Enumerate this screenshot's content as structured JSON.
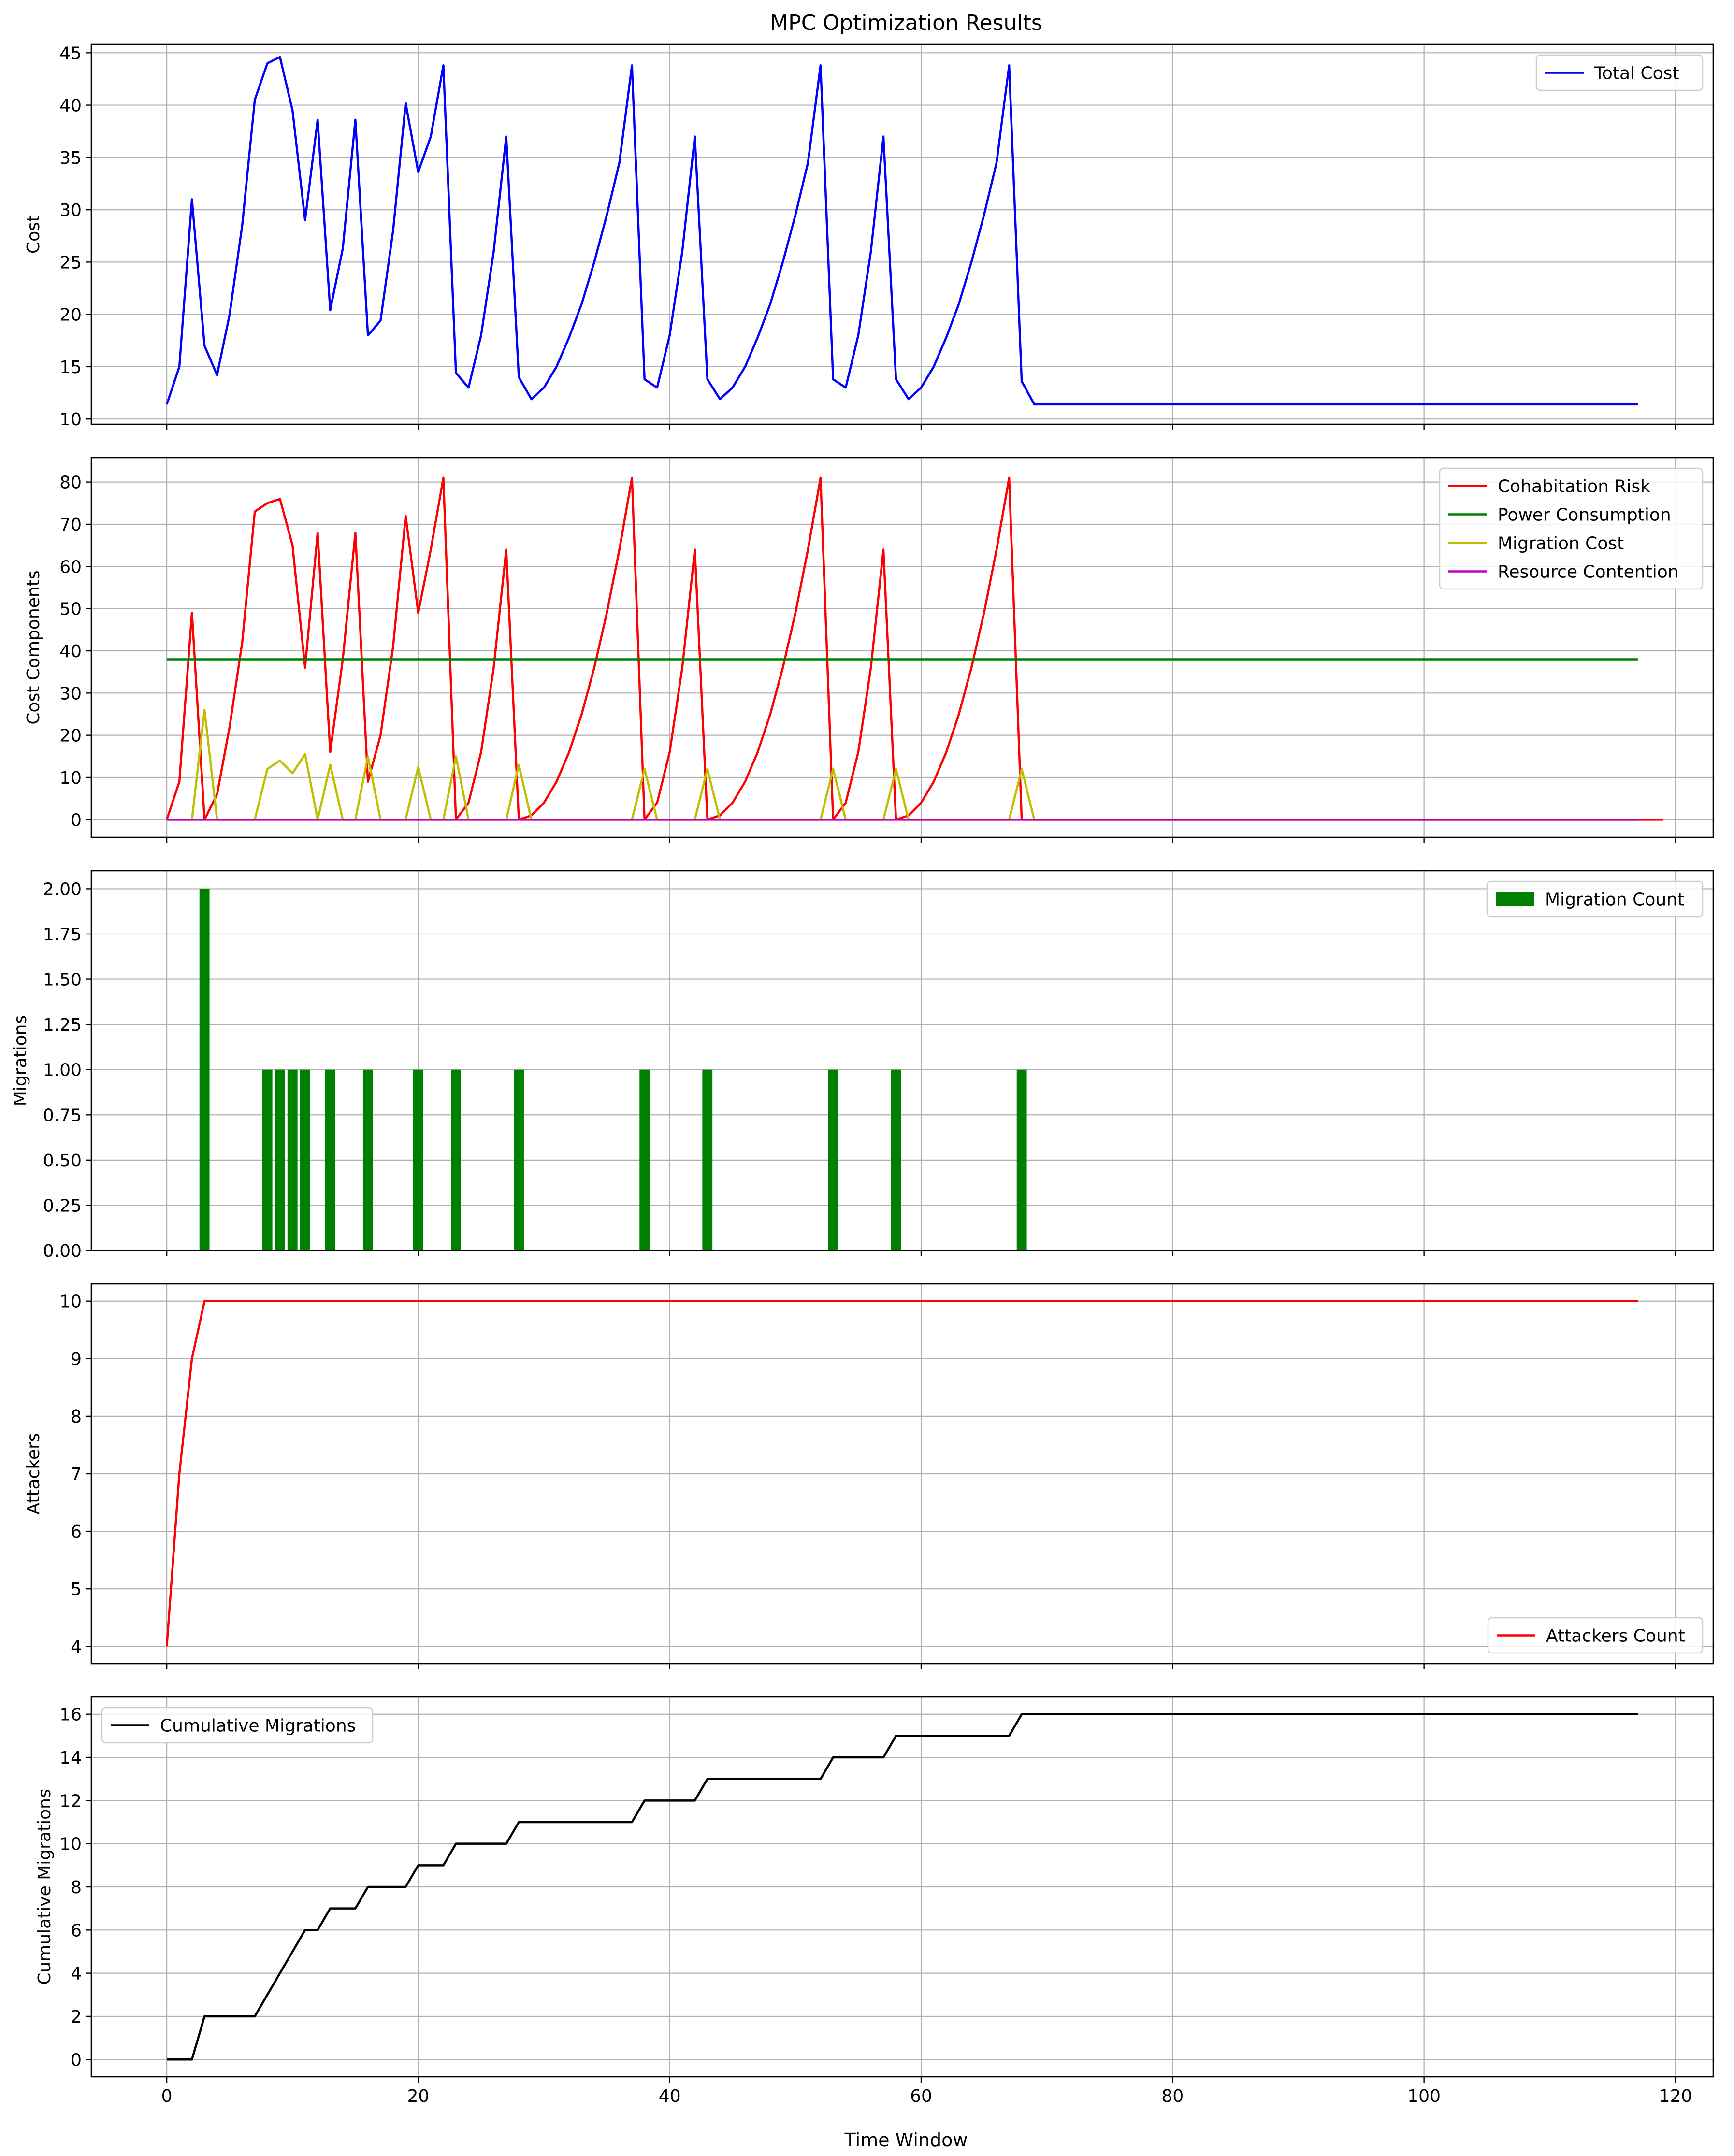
{
  "figure_title": "MPC Optimization Results",
  "x_axis_label": "Time Window",
  "chart_data": [
    {
      "type": "line",
      "ylabel": "Cost",
      "xlim": [
        -6,
        123
      ],
      "ylim": [
        9.5,
        45.8
      ],
      "xticks": [
        0,
        20,
        40,
        60,
        80,
        100,
        120
      ],
      "yticks": [
        10,
        15,
        20,
        25,
        30,
        35,
        40,
        45
      ],
      "ytick_labels": [
        "10",
        "15",
        "20",
        "25",
        "30",
        "35",
        "40",
        "45"
      ],
      "grid": true,
      "legend_position": "upper right",
      "series": [
        {
          "name": "Total Cost",
          "color": "#0000ff",
          "x_start": 0,
          "values": [
            11.4,
            15.0,
            31.0,
            17.0,
            14.2,
            20.0,
            28.5,
            40.5,
            44.0,
            44.6,
            39.5,
            29.0,
            38.6,
            20.4,
            26.3,
            38.6,
            18.0,
            19.4,
            28.0,
            40.2,
            33.6,
            37.0,
            43.8,
            14.4,
            13.0,
            18.0,
            26.0,
            37.0,
            14.0,
            11.9,
            13.0,
            15.0,
            17.8,
            21.0,
            25.0,
            29.5,
            34.5,
            43.8,
            13.8,
            13.0,
            18.0,
            26.0,
            37.0,
            13.8,
            11.9,
            13.0,
            15.0,
            17.8,
            21.0,
            25.0,
            29.5,
            34.5,
            43.8,
            13.8,
            13.0,
            18.0,
            26.0,
            37.0,
            13.8,
            11.9,
            13.0,
            15.0,
            17.8,
            21.0,
            25.0,
            29.5,
            34.5,
            43.8,
            13.6,
            11.4,
            11.4,
            11.4,
            11.4,
            11.4,
            11.4,
            11.4,
            11.4,
            11.4,
            11.4,
            11.4,
            11.4,
            11.4,
            11.4,
            11.4,
            11.4,
            11.4,
            11.4,
            11.4,
            11.4,
            11.4,
            11.4,
            11.4,
            11.4,
            11.4,
            11.4,
            11.4,
            11.4,
            11.4,
            11.4,
            11.4,
            11.4,
            11.4,
            11.4,
            11.4,
            11.4,
            11.4,
            11.4,
            11.4,
            11.4,
            11.4,
            11.4,
            11.4,
            11.4,
            11.4,
            11.4,
            11.4,
            11.4,
            11.4
          ]
        }
      ]
    },
    {
      "type": "line",
      "ylabel": "Cost Components",
      "xlim": [
        -6,
        123
      ],
      "ylim": [
        -4.2,
        85.8
      ],
      "xticks": [
        0,
        20,
        40,
        60,
        80,
        100,
        120
      ],
      "yticks": [
        0,
        10,
        20,
        30,
        40,
        50,
        60,
        70,
        80
      ],
      "ytick_labels": [
        "0",
        "10",
        "20",
        "30",
        "40",
        "50",
        "60",
        "70",
        "80"
      ],
      "grid": true,
      "legend_position": "upper right",
      "series": [
        {
          "name": "Cohabitation Risk",
          "color": "#ff0000",
          "x_start": 0,
          "values": [
            0,
            9,
            49,
            0,
            6,
            22,
            42,
            73,
            75,
            76,
            65,
            36,
            68,
            16,
            38,
            68,
            9,
            20,
            41,
            72,
            49,
            64,
            81,
            0,
            4,
            16,
            36,
            64,
            0,
            1,
            4,
            9,
            16,
            25,
            36,
            49,
            64,
            81,
            0,
            4,
            16,
            36,
            64,
            0,
            1,
            4,
            9,
            16,
            25,
            36,
            49,
            64,
            81,
            0,
            4,
            16,
            36,
            64,
            0,
            1,
            4,
            9,
            16,
            25,
            36,
            49,
            64,
            81,
            0,
            0,
            0,
            0,
            0,
            0,
            0,
            0,
            0,
            0,
            0,
            0,
            0,
            0,
            0,
            0,
            0,
            0,
            0,
            0,
            0,
            0,
            0,
            0,
            0,
            0,
            0,
            0,
            0,
            0,
            0,
            0,
            0,
            0,
            0,
            0,
            0,
            0,
            0,
            0,
            0,
            0,
            0,
            0,
            0,
            0,
            0,
            0,
            0,
            0,
            0,
            0
          ]
        },
        {
          "name": "Power Consumption",
          "color": "#008000",
          "x_start": 0,
          "values": [
            38,
            38,
            38,
            38,
            38,
            38,
            38,
            38,
            38,
            38,
            38,
            38,
            38,
            38,
            38,
            38,
            38,
            38,
            38,
            38,
            38,
            38,
            38,
            38,
            38,
            38,
            38,
            38,
            38,
            38,
            38,
            38,
            38,
            38,
            38,
            38,
            38,
            38,
            38,
            38,
            38,
            38,
            38,
            38,
            38,
            38,
            38,
            38,
            38,
            38,
            38,
            38,
            38,
            38,
            38,
            38,
            38,
            38,
            38,
            38,
            38,
            38,
            38,
            38,
            38,
            38,
            38,
            38,
            38,
            38,
            38,
            38,
            38,
            38,
            38,
            38,
            38,
            38,
            38,
            38,
            38,
            38,
            38,
            38,
            38,
            38,
            38,
            38,
            38,
            38,
            38,
            38,
            38,
            38,
            38,
            38,
            38,
            38,
            38,
            38,
            38,
            38,
            38,
            38,
            38,
            38,
            38,
            38,
            38,
            38,
            38,
            38,
            38,
            38,
            38,
            38,
            38,
            38
          ]
        },
        {
          "name": "Migration Cost",
          "color": "#bfbf00",
          "x_start": 0,
          "values": [
            0,
            0,
            0,
            26,
            0,
            0,
            0,
            0,
            12,
            14,
            11,
            15.5,
            0,
            13,
            0,
            0,
            15,
            0,
            0,
            0,
            12.5,
            0,
            0,
            15,
            0,
            0,
            0,
            0,
            13,
            0,
            0,
            0,
            0,
            0,
            0,
            0,
            0,
            0,
            12,
            0,
            0,
            0,
            0,
            12,
            0,
            0,
            0,
            0,
            0,
            0,
            0,
            0,
            0,
            12,
            0,
            0,
            0,
            0,
            12,
            0,
            0,
            0,
            0,
            0,
            0,
            0,
            0,
            0,
            12,
            0,
            0,
            0,
            0,
            0,
            0,
            0,
            0,
            0,
            0,
            0,
            0,
            0,
            0,
            0,
            0,
            0,
            0,
            0,
            0,
            0,
            0,
            0,
            0,
            0,
            0,
            0,
            0,
            0,
            0,
            0,
            0,
            0,
            0,
            0,
            0,
            0,
            0,
            0,
            0,
            0,
            0,
            0,
            0,
            0,
            0,
            0,
            0,
            0
          ]
        },
        {
          "name": "Resource Contention",
          "color": "#bf00bf",
          "x_start": 0,
          "values": [
            0,
            0,
            0,
            0,
            0,
            0,
            0,
            0,
            0,
            0,
            0,
            0,
            0,
            0,
            0,
            0,
            0,
            0,
            0,
            0,
            0,
            0,
            0,
            0,
            0,
            0,
            0,
            0,
            0,
            0,
            0,
            0,
            0,
            0,
            0,
            0,
            0,
            0,
            0,
            0,
            0,
            0,
            0,
            0,
            0,
            0,
            0,
            0,
            0,
            0,
            0,
            0,
            0,
            0,
            0,
            0,
            0,
            0,
            0,
            0,
            0,
            0,
            0,
            0,
            0,
            0,
            0,
            0,
            0,
            0,
            0,
            0,
            0,
            0,
            0,
            0,
            0,
            0,
            0,
            0,
            0,
            0,
            0,
            0,
            0,
            0,
            0,
            0,
            0,
            0,
            0,
            0,
            0,
            0,
            0,
            0,
            0,
            0,
            0,
            0,
            0,
            0,
            0,
            0,
            0,
            0,
            0,
            0,
            0,
            0,
            0,
            0,
            0,
            0,
            0,
            0,
            0,
            0
          ]
        }
      ]
    },
    {
      "type": "bar",
      "ylabel": "Migrations",
      "xlim": [
        -6,
        123
      ],
      "ylim": [
        0,
        2.1
      ],
      "xticks": [
        0,
        20,
        40,
        60,
        80,
        100,
        120
      ],
      "yticks": [
        0,
        0.25,
        0.5,
        0.75,
        1.0,
        1.25,
        1.5,
        1.75,
        2.0
      ],
      "ytick_labels": [
        "0.00",
        "0.25",
        "0.50",
        "0.75",
        "1.00",
        "1.25",
        "1.50",
        "1.75",
        "2.00"
      ],
      "grid": true,
      "legend_position": "upper right",
      "bar_width": 0.8,
      "series": [
        {
          "name": "Migration Count",
          "color": "#008000",
          "x": [
            3,
            8,
            9,
            10,
            11,
            13,
            16,
            20,
            23,
            28,
            38,
            43,
            53,
            58,
            68
          ],
          "values": [
            2,
            1,
            1,
            1,
            1,
            1,
            1,
            1,
            1,
            1,
            1,
            1,
            1,
            1,
            1
          ]
        }
      ]
    },
    {
      "type": "line",
      "ylabel": "Attackers",
      "xlim": [
        -6,
        123
      ],
      "ylim": [
        3.7,
        10.3
      ],
      "xticks": [
        0,
        20,
        40,
        60,
        80,
        100,
        120
      ],
      "yticks": [
        4,
        5,
        6,
        7,
        8,
        9,
        10
      ],
      "ytick_labels": [
        "4",
        "5",
        "6",
        "7",
        "8",
        "9",
        "10"
      ],
      "grid": true,
      "legend_position": "lower right",
      "series": [
        {
          "name": "Attackers Count",
          "color": "#ff0000",
          "x": [
            0,
            1,
            2,
            3,
            117
          ],
          "values": [
            4,
            7,
            9,
            10,
            10
          ]
        }
      ]
    },
    {
      "type": "line",
      "ylabel": "Cumulative Migrations",
      "xlim": [
        -6,
        123
      ],
      "ylim": [
        -0.8,
        16.8
      ],
      "xticks": [
        0,
        20,
        40,
        60,
        80,
        100,
        120
      ],
      "yticks": [
        0,
        2,
        4,
        6,
        8,
        10,
        12,
        14,
        16
      ],
      "ytick_labels": [
        "0",
        "2",
        "4",
        "6",
        "8",
        "10",
        "12",
        "14",
        "16"
      ],
      "xtick_labels": [
        "0",
        "20",
        "40",
        "60",
        "80",
        "100",
        "120"
      ],
      "grid": true,
      "legend_position": "upper left",
      "series": [
        {
          "name": "Cumulative Migrations",
          "color": "#000000",
          "x": [
            0,
            2,
            3,
            7,
            8,
            9,
            10,
            11,
            12,
            13,
            15,
            16,
            19,
            20,
            22,
            23,
            27,
            28,
            37,
            38,
            42,
            43,
            52,
            53,
            57,
            58,
            67,
            68,
            117
          ],
          "values": [
            0,
            0,
            2,
            2,
            3,
            4,
            5,
            6,
            6,
            7,
            7,
            8,
            8,
            9,
            9,
            10,
            10,
            11,
            11,
            12,
            12,
            13,
            13,
            14,
            14,
            15,
            15,
            16,
            16
          ]
        }
      ]
    }
  ]
}
